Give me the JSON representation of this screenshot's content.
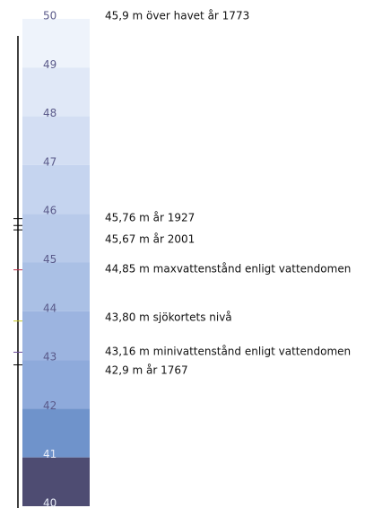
{
  "scale": {
    "levels": [
      50,
      49,
      48,
      47,
      46,
      45,
      44,
      43,
      42,
      41,
      40
    ],
    "band_colors": [
      "#eef3fb",
      "#e0e8f7",
      "#d3def3",
      "#c5d4ef",
      "#b8caea",
      "#aac0e5",
      "#9cb4e0",
      "#8eaadb",
      "#6f93cb",
      "#4e4c72"
    ]
  },
  "annotations": [
    {
      "text": "45,9 m över havet år 1773",
      "level": 45.9,
      "color": "#000000"
    },
    {
      "text": "45,76 m år 1927",
      "level": 45.76,
      "color": "#000000"
    },
    {
      "text": "45,67 m år 2001",
      "level": 45.67,
      "color": "#000000"
    },
    {
      "text": "44,85 m maxvattenstånd enligt vattendomen",
      "level": 44.85,
      "color": "#c0304a"
    },
    {
      "text": "43,80 m sjökortets nivå",
      "level": 43.8,
      "color": "#c8c820"
    },
    {
      "text": "43,16 m minivattenstånd enligt vattendomen",
      "level": 43.16,
      "color": "#6a4a9a"
    },
    {
      "text": "42,9 m år 1767",
      "level": 42.9,
      "color": "#000000"
    }
  ]
}
